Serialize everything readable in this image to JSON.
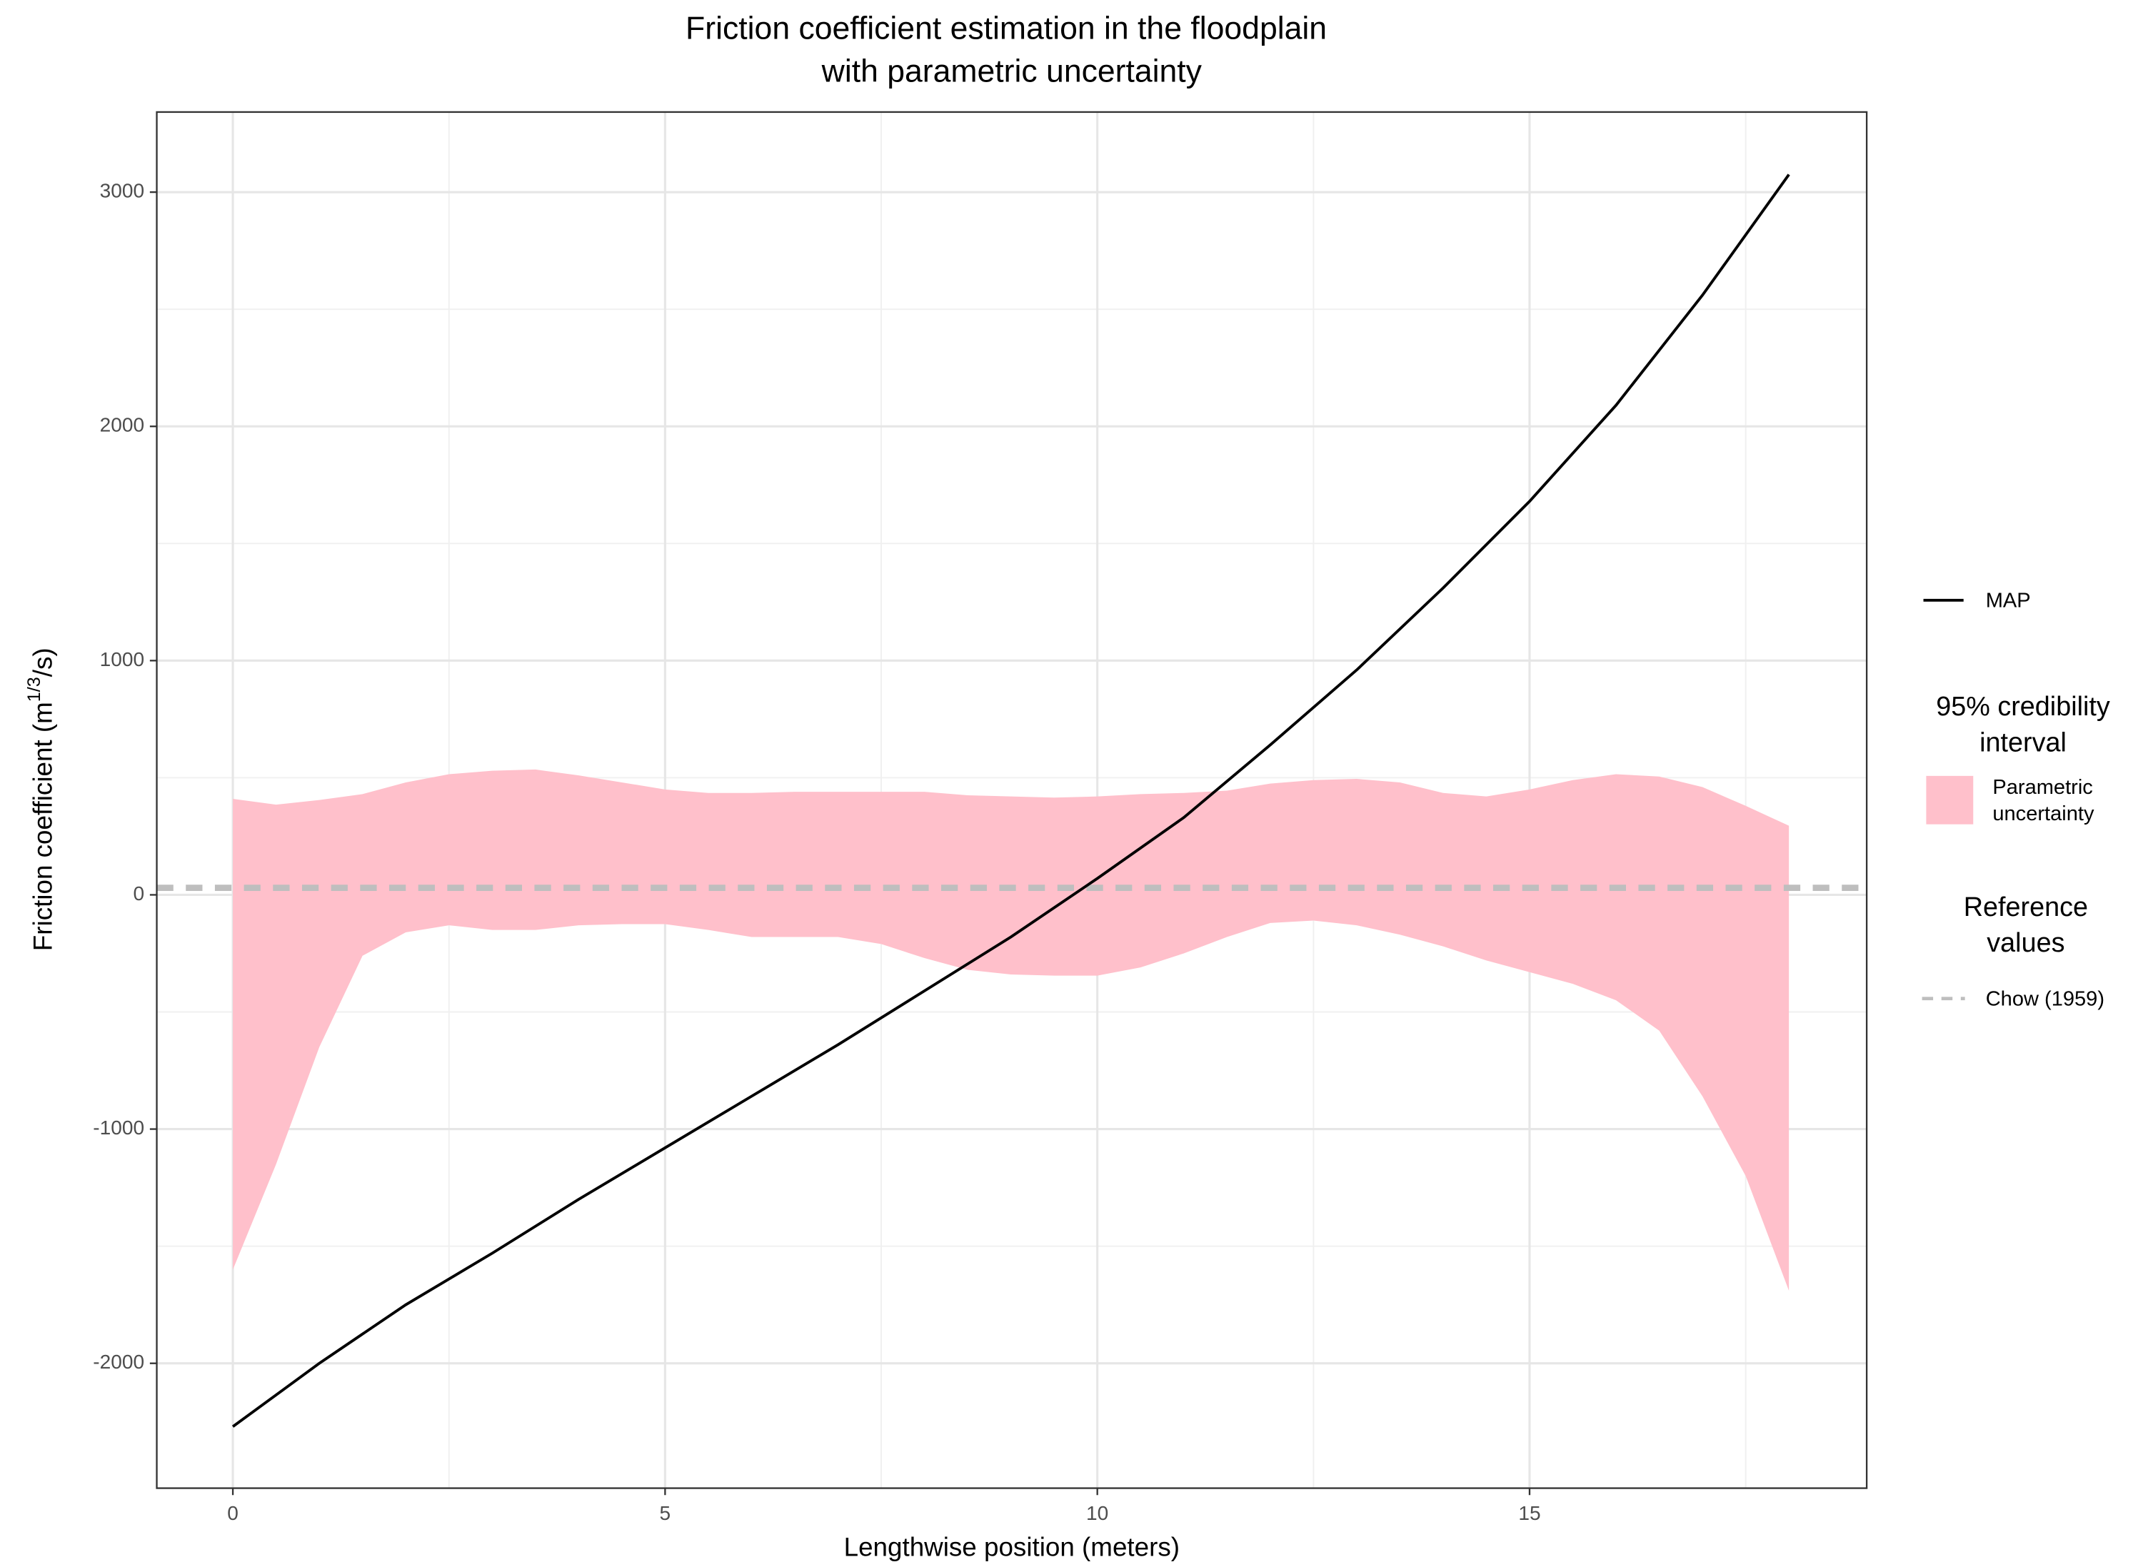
{
  "chart_data": {
    "type": "line",
    "title": [
      "Friction coefficient estimation in the floodplain",
      "with parametric uncertainty"
    ],
    "xlabel": "Lengthwise position (meters)",
    "ylabel": {
      "pre": "Friction coefficient (m",
      "sup": "1/3",
      "post": "/s)"
    },
    "xlim": [
      -0.88,
      18.9
    ],
    "ylim": [
      -2533,
      3342
    ],
    "xticks": [
      0,
      5,
      10,
      15
    ],
    "yticks": [
      -2000,
      -1000,
      0,
      1000,
      2000,
      3000
    ],
    "xminor": [
      2.5,
      7.5,
      12.5,
      17.5
    ],
    "yminor": [
      -1500,
      -500,
      500,
      1500,
      2500
    ],
    "grid": true,
    "series": [
      {
        "name": "MAP",
        "color": "#000000",
        "x": [
          0,
          1,
          2,
          3,
          4,
          5,
          6,
          7,
          8,
          9,
          10,
          11,
          12,
          13,
          14,
          15,
          16,
          17,
          18
        ],
        "values": [
          -2270,
          -2000,
          -1750,
          -1530,
          -1300,
          -1080,
          -860,
          -640,
          -410,
          -180,
          70,
          330,
          640,
          960,
          1310,
          1680,
          2090,
          2560,
          3075
        ]
      }
    ],
    "ribbon": {
      "legend_title": [
        "95% credibility",
        "interval"
      ],
      "name": [
        "Parametric",
        "uncertainty"
      ],
      "color": "#ffc0cb",
      "x": [
        0,
        0.5,
        1,
        1.5,
        2,
        2.5,
        3,
        3.5,
        4,
        4.5,
        5,
        5.5,
        6,
        6.5,
        7,
        7.5,
        8,
        8.5,
        9,
        9.5,
        10,
        10.5,
        11,
        11.5,
        12,
        12.5,
        13,
        13.5,
        14,
        14.5,
        15,
        15.5,
        16,
        16.5,
        17,
        17.5,
        18
      ],
      "upper": [
        410,
        385,
        405,
        430,
        480,
        515,
        530,
        535,
        510,
        480,
        450,
        435,
        435,
        440,
        440,
        440,
        440,
        425,
        420,
        415,
        420,
        430,
        435,
        445,
        475,
        490,
        495,
        480,
        435,
        420,
        450,
        490,
        515,
        505,
        460,
        380,
        295
      ],
      "lower": [
        -1600,
        -1150,
        -650,
        -260,
        -160,
        -130,
        -150,
        -150,
        -130,
        -125,
        -125,
        -150,
        -180,
        -180,
        -180,
        -210,
        -270,
        -320,
        -340,
        -345,
        -345,
        -310,
        -250,
        -180,
        -120,
        -110,
        -130,
        -170,
        -220,
        -280,
        -330,
        -380,
        -450,
        -580,
        -860,
        -1200,
        -1690
      ]
    },
    "reference": {
      "legend_title": [
        "Reference",
        "values"
      ],
      "name": "Chow (1959)",
      "value": 30,
      "color": "#bebebe"
    }
  }
}
